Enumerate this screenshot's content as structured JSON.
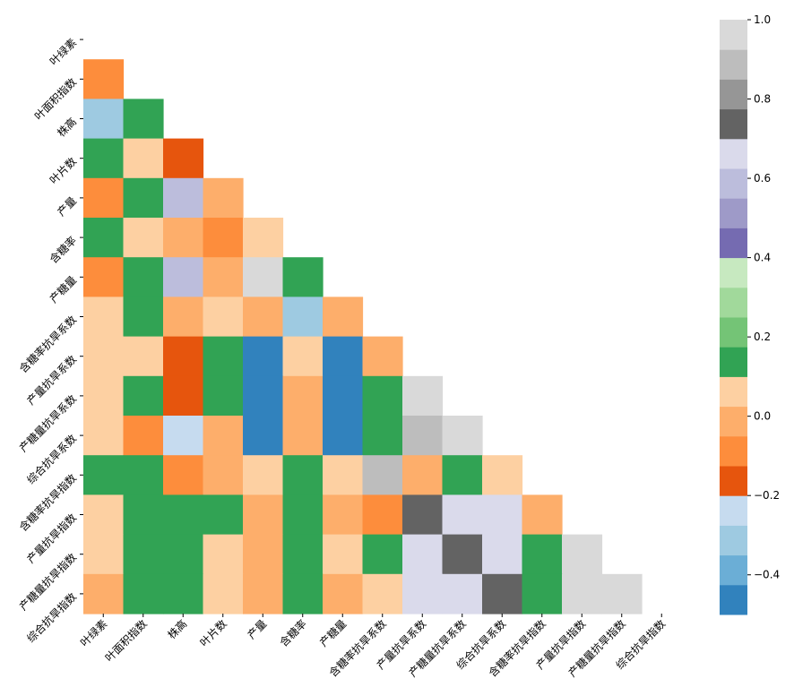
{
  "chart_data": {
    "type": "heatmap",
    "mask": "upper-triangle",
    "labels": [
      "叶绿素",
      "叶面积指数",
      "株高",
      "叶片数",
      "产量",
      "含糖率",
      "产糖量",
      "含糖率抗旱系数",
      "产量抗旱系数",
      "产糖量抗旱系数",
      "综合抗旱系数",
      "含糖率抗旱指数",
      "产量抗旱指数",
      "产糖量抗旱指数",
      "综合抗旱指数"
    ],
    "matrix": [
      [
        null,
        null,
        null,
        null,
        null,
        null,
        null,
        null,
        null,
        null,
        null,
        null,
        null,
        null,
        null
      ],
      [
        -0.07,
        null,
        null,
        null,
        null,
        null,
        null,
        null,
        null,
        null,
        null,
        null,
        null,
        null,
        null
      ],
      [
        -0.35,
        0.17,
        null,
        null,
        null,
        null,
        null,
        null,
        null,
        null,
        null,
        null,
        null,
        null,
        null
      ],
      [
        0.13,
        0.07,
        -0.15,
        null,
        null,
        null,
        null,
        null,
        null,
        null,
        null,
        null,
        null,
        null,
        null
      ],
      [
        -0.07,
        0.17,
        0.55,
        -0.02,
        null,
        null,
        null,
        null,
        null,
        null,
        null,
        null,
        null,
        null,
        null
      ],
      [
        0.13,
        0.07,
        -0.02,
        -0.07,
        0.07,
        null,
        null,
        null,
        null,
        null,
        null,
        null,
        null,
        null,
        null
      ],
      [
        -0.07,
        0.17,
        0.55,
        -0.02,
        0.95,
        0.17,
        null,
        null,
        null,
        null,
        null,
        null,
        null,
        null,
        null
      ],
      [
        0.07,
        0.13,
        -0.02,
        0.07,
        -0.02,
        -0.35,
        -0.02,
        null,
        null,
        null,
        null,
        null,
        null,
        null,
        null
      ],
      [
        0.07,
        0.07,
        -0.15,
        0.13,
        -0.48,
        0.07,
        -0.48,
        -0.02,
        null,
        null,
        null,
        null,
        null,
        null,
        null
      ],
      [
        0.07,
        0.13,
        -0.15,
        0.13,
        -0.48,
        -0.02,
        -0.48,
        0.17,
        0.95,
        null,
        null,
        null,
        null,
        null,
        null
      ],
      [
        0.07,
        -0.07,
        -0.25,
        -0.02,
        -0.48,
        -0.02,
        -0.48,
        0.13,
        0.85,
        0.95,
        null,
        null,
        null,
        null,
        null
      ],
      [
        0.13,
        0.13,
        -0.07,
        -0.02,
        0.07,
        0.17,
        0.07,
        0.85,
        -0.02,
        0.13,
        0.07,
        null,
        null,
        null,
        null
      ],
      [
        0.07,
        0.17,
        0.17,
        0.13,
        -0.02,
        0.13,
        -0.02,
        -0.07,
        0.75,
        0.65,
        0.65,
        -0.02,
        null,
        null,
        null
      ],
      [
        0.07,
        0.17,
        0.17,
        0.07,
        -0.02,
        0.13,
        0.07,
        0.13,
        0.65,
        0.75,
        0.65,
        0.17,
        0.95,
        null,
        null
      ],
      [
        -0.02,
        0.13,
        0.13,
        0.07,
        -0.02,
        0.13,
        -0.02,
        0.07,
        0.65,
        0.65,
        0.75,
        0.13,
        0.95,
        0.95,
        null
      ]
    ],
    "colorbar": {
      "range": [
        -0.5,
        1.0
      ],
      "ticks": [
        "−0.4",
        "−0.2",
        "0.0",
        "0.2",
        "0.4",
        "0.6",
        "0.8",
        "1.0"
      ],
      "tick_values": [
        -0.4,
        -0.2,
        0.0,
        0.2,
        0.4,
        0.6,
        0.8,
        1.0
      ],
      "colormap": "tab20c",
      "colors": [
        "#3182bd",
        "#6baed6",
        "#9ecae1",
        "#c6dbef",
        "#e6550d",
        "#fd8d3c",
        "#fdae6b",
        "#fdd0a2",
        "#31a354",
        "#74c476",
        "#a1d99b",
        "#c7e9c0",
        "#756bb1",
        "#9e9ac8",
        "#bcbddc",
        "#dadaeb",
        "#636363",
        "#969696",
        "#bdbdbd",
        "#d9d9d9"
      ]
    }
  }
}
